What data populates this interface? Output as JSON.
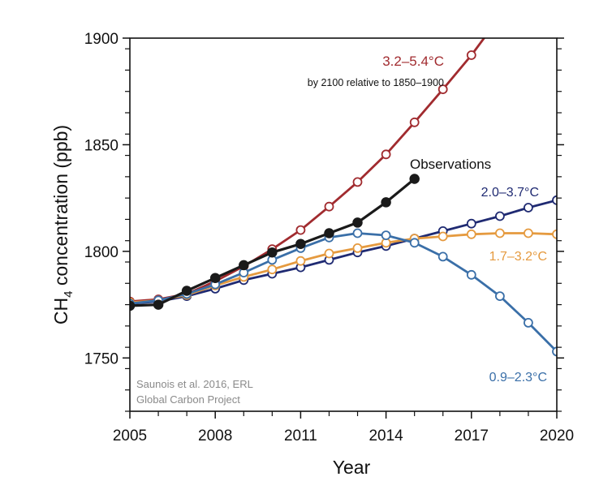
{
  "chart_data": {
    "type": "line",
    "xlabel": "Year",
    "ylabel": "CH4 concentration (ppb)",
    "ylabel_main": "CH",
    "ylabel_sub": "4",
    "ylabel_rest": " concentration (ppb)",
    "xlim": [
      2005,
      2020
    ],
    "ylim": [
      1725,
      1900
    ],
    "xticks": [
      2005,
      2008,
      2011,
      2014,
      2017,
      2020
    ],
    "yticks": [
      1750,
      1800,
      1850,
      1900
    ],
    "grid": false,
    "series": [
      {
        "name": "3.2–5.4°C",
        "color": "#a12b2f",
        "marker": "open",
        "x": [
          2005,
          2006,
          2007,
          2008,
          2009,
          2010,
          2011,
          2012,
          2013,
          2014,
          2015,
          2016,
          2017,
          2018
        ],
        "y": [
          1776.5,
          1777.5,
          1780,
          1786,
          1793,
          1801,
          1810,
          1821,
          1832.5,
          1845.5,
          1860.5,
          1876,
          1892,
          1910
        ]
      },
      {
        "name": "2.0–3.7°C",
        "color": "#1f2a72",
        "marker": "open",
        "x": [
          2005,
          2006,
          2007,
          2008,
          2009,
          2010,
          2011,
          2012,
          2013,
          2014,
          2015,
          2016,
          2017,
          2018,
          2019,
          2020
        ],
        "y": [
          1775.5,
          1776.5,
          1779,
          1782.5,
          1786.5,
          1789.5,
          1792.5,
          1796,
          1799.5,
          1802.5,
          1806,
          1809.5,
          1813,
          1816.5,
          1820.5,
          1824
        ]
      },
      {
        "name": "1.7–3.2°C",
        "color": "#e59a3f",
        "marker": "open",
        "x": [
          2005,
          2006,
          2007,
          2008,
          2009,
          2010,
          2011,
          2012,
          2013,
          2014,
          2015,
          2016,
          2017,
          2018,
          2019,
          2020
        ],
        "y": [
          1776,
          1777,
          1779.5,
          1784,
          1788,
          1791.5,
          1795.5,
          1799,
          1801.5,
          1804,
          1806,
          1807,
          1808,
          1808.5,
          1808.5,
          1808
        ]
      },
      {
        "name": "0.9–2.3°C",
        "color": "#3a6fa8",
        "marker": "open",
        "x": [
          2005,
          2006,
          2007,
          2008,
          2009,
          2010,
          2011,
          2012,
          2013,
          2014,
          2015,
          2016,
          2017,
          2018,
          2019,
          2020
        ],
        "y": [
          1775.5,
          1777,
          1780,
          1784.5,
          1790,
          1796,
          1801.5,
          1806.5,
          1808.5,
          1807.5,
          1804,
          1797.5,
          1789,
          1779,
          1766.5,
          1753
        ]
      },
      {
        "name": "Observations",
        "color": "#1a1a1a",
        "marker": "filled",
        "x": [
          2005,
          2006,
          2007,
          2008,
          2009,
          2010,
          2011,
          2012,
          2013,
          2014,
          2015
        ],
        "y": [
          1774.5,
          1775,
          1781.5,
          1787.5,
          1793.5,
          1799.5,
          1803.5,
          1808.5,
          1813.5,
          1823,
          1834
        ]
      }
    ],
    "annotations": {
      "high_label": "3.2–5.4°C",
      "high_note": "by 2100 relative to 1850–1900",
      "obs_label": "Observations",
      "mid_label": "2.0–3.7°C",
      "lowmid_label": "1.7–3.2°C",
      "low_label": "0.9–2.3°C",
      "source_line1": "Saunois et al. 2016, ERL",
      "source_line2": "Global Carbon Project"
    }
  }
}
